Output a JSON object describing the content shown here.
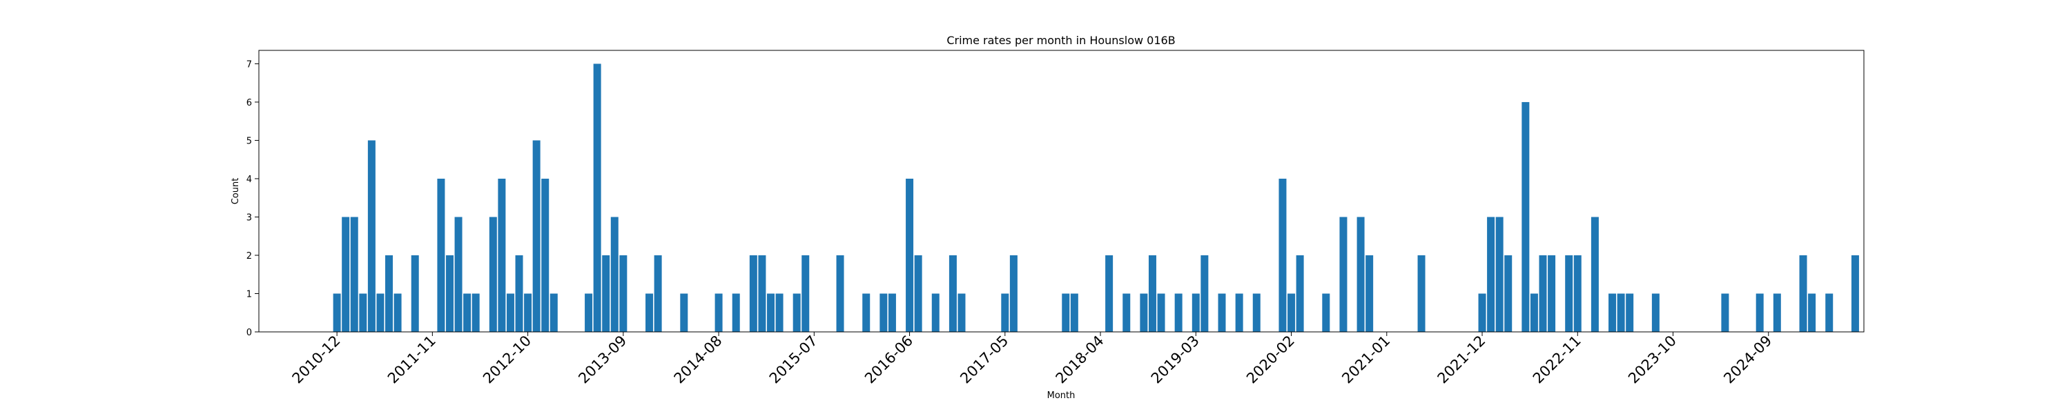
{
  "chart_data": {
    "type": "bar",
    "title": "Crime rates per month in Hounslow 016B",
    "xlabel": "Month",
    "ylabel": "Count",
    "ylim": [
      0,
      7.35
    ],
    "yticks": [
      0,
      1,
      2,
      3,
      4,
      5,
      6,
      7
    ],
    "x_axis": {
      "type": "month",
      "start": "2010-03",
      "end": "2025-08"
    },
    "xticks": [
      "2010-12",
      "2011-11",
      "2012-10",
      "2013-09",
      "2014-08",
      "2015-07",
      "2016-06",
      "2017-05",
      "2018-04",
      "2019-03",
      "2020-02",
      "2021-01",
      "2021-12",
      "2022-11",
      "2023-10",
      "2024-09"
    ],
    "bar_color": "#1f77b4",
    "grid": false,
    "legend": "none",
    "points": [
      {
        "x": "2010-12",
        "y": 1
      },
      {
        "x": "2011-01",
        "y": 3
      },
      {
        "x": "2011-02",
        "y": 3
      },
      {
        "x": "2011-03",
        "y": 1
      },
      {
        "x": "2011-04",
        "y": 5
      },
      {
        "x": "2011-05",
        "y": 1
      },
      {
        "x": "2011-06",
        "y": 2
      },
      {
        "x": "2011-07",
        "y": 1
      },
      {
        "x": "2011-09",
        "y": 2
      },
      {
        "x": "2011-12",
        "y": 4
      },
      {
        "x": "2012-01",
        "y": 2
      },
      {
        "x": "2012-02",
        "y": 3
      },
      {
        "x": "2012-03",
        "y": 1
      },
      {
        "x": "2012-04",
        "y": 1
      },
      {
        "x": "2012-06",
        "y": 3
      },
      {
        "x": "2012-07",
        "y": 4
      },
      {
        "x": "2012-08",
        "y": 1
      },
      {
        "x": "2012-09",
        "y": 2
      },
      {
        "x": "2012-10",
        "y": 1
      },
      {
        "x": "2012-11",
        "y": 5
      },
      {
        "x": "2012-12",
        "y": 4
      },
      {
        "x": "2013-01",
        "y": 1
      },
      {
        "x": "2013-05",
        "y": 1
      },
      {
        "x": "2013-06",
        "y": 7
      },
      {
        "x": "2013-07",
        "y": 2
      },
      {
        "x": "2013-08",
        "y": 3
      },
      {
        "x": "2013-09",
        "y": 2
      },
      {
        "x": "2013-12",
        "y": 1
      },
      {
        "x": "2014-01",
        "y": 2
      },
      {
        "x": "2014-04",
        "y": 1
      },
      {
        "x": "2014-08",
        "y": 1
      },
      {
        "x": "2014-10",
        "y": 1
      },
      {
        "x": "2014-12",
        "y": 2
      },
      {
        "x": "2015-01",
        "y": 2
      },
      {
        "x": "2015-02",
        "y": 1
      },
      {
        "x": "2015-03",
        "y": 1
      },
      {
        "x": "2015-05",
        "y": 1
      },
      {
        "x": "2015-06",
        "y": 2
      },
      {
        "x": "2015-10",
        "y": 2
      },
      {
        "x": "2016-01",
        "y": 1
      },
      {
        "x": "2016-03",
        "y": 1
      },
      {
        "x": "2016-04",
        "y": 1
      },
      {
        "x": "2016-06",
        "y": 4
      },
      {
        "x": "2016-07",
        "y": 2
      },
      {
        "x": "2016-09",
        "y": 1
      },
      {
        "x": "2016-11",
        "y": 2
      },
      {
        "x": "2016-12",
        "y": 1
      },
      {
        "x": "2017-05",
        "y": 1
      },
      {
        "x": "2017-06",
        "y": 2
      },
      {
        "x": "2017-12",
        "y": 1
      },
      {
        "x": "2018-01",
        "y": 1
      },
      {
        "x": "2018-05",
        "y": 2
      },
      {
        "x": "2018-07",
        "y": 1
      },
      {
        "x": "2018-09",
        "y": 1
      },
      {
        "x": "2018-10",
        "y": 2
      },
      {
        "x": "2018-11",
        "y": 1
      },
      {
        "x": "2019-01",
        "y": 1
      },
      {
        "x": "2019-03",
        "y": 1
      },
      {
        "x": "2019-04",
        "y": 2
      },
      {
        "x": "2019-06",
        "y": 1
      },
      {
        "x": "2019-08",
        "y": 1
      },
      {
        "x": "2019-10",
        "y": 1
      },
      {
        "x": "2020-01",
        "y": 4
      },
      {
        "x": "2020-02",
        "y": 1
      },
      {
        "x": "2020-03",
        "y": 2
      },
      {
        "x": "2020-06",
        "y": 1
      },
      {
        "x": "2020-08",
        "y": 3
      },
      {
        "x": "2020-10",
        "y": 3
      },
      {
        "x": "2020-11",
        "y": 2
      },
      {
        "x": "2021-05",
        "y": 2
      },
      {
        "x": "2021-12",
        "y": 1
      },
      {
        "x": "2022-01",
        "y": 3
      },
      {
        "x": "2022-02",
        "y": 3
      },
      {
        "x": "2022-03",
        "y": 2
      },
      {
        "x": "2022-05",
        "y": 6
      },
      {
        "x": "2022-06",
        "y": 1
      },
      {
        "x": "2022-07",
        "y": 2
      },
      {
        "x": "2022-08",
        "y": 2
      },
      {
        "x": "2022-10",
        "y": 2
      },
      {
        "x": "2022-11",
        "y": 2
      },
      {
        "x": "2023-01",
        "y": 3
      },
      {
        "x": "2023-03",
        "y": 1
      },
      {
        "x": "2023-04",
        "y": 1
      },
      {
        "x": "2023-05",
        "y": 1
      },
      {
        "x": "2023-08",
        "y": 1
      },
      {
        "x": "2024-04",
        "y": 1
      },
      {
        "x": "2024-08",
        "y": 1
      },
      {
        "x": "2024-10",
        "y": 1
      },
      {
        "x": "2025-01",
        "y": 2
      },
      {
        "x": "2025-02",
        "y": 1
      },
      {
        "x": "2025-04",
        "y": 1
      },
      {
        "x": "2025-07",
        "y": 2
      }
    ]
  }
}
